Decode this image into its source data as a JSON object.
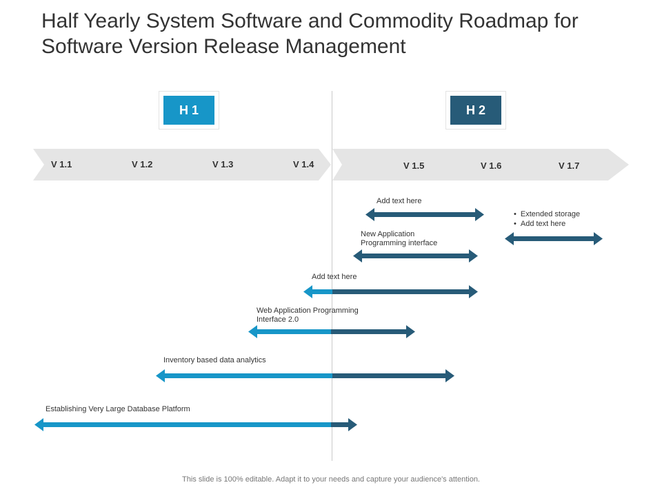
{
  "title": "Half Yearly System Software and Commodity Roadmap for Software Version Release Management",
  "colors": {
    "light": "#1796c8",
    "dark": "#275b78",
    "band": "#e5e5e5"
  },
  "halves": [
    {
      "label": "H 1",
      "color": "#1796c8"
    },
    {
      "label": "H 2",
      "color": "#275b78"
    }
  ],
  "versions_h1": [
    "V 1.1",
    "V 1.2",
    "V 1.3",
    "V 1.4"
  ],
  "versions_h2": [
    "V 1.5",
    "V 1.6",
    "V 1.7"
  ],
  "tasks": [
    {
      "label": "Add text here",
      "color": "dark"
    },
    {
      "label": "New Application Programming interface",
      "color": "dark"
    },
    {
      "label": "Add text here",
      "color": "split"
    },
    {
      "label": "Web Application Programming Interface 2.0",
      "color": "split"
    },
    {
      "label": "Inventory based data analytics",
      "color": "split"
    },
    {
      "label": "Establishing Very Large Database Platform",
      "color": "split"
    }
  ],
  "bullet_task": {
    "bullets": [
      "Extended storage",
      "Add text here"
    ],
    "color": "dark"
  },
  "footer": "This slide is 100% editable. Adapt it to your needs and capture your audience's attention."
}
